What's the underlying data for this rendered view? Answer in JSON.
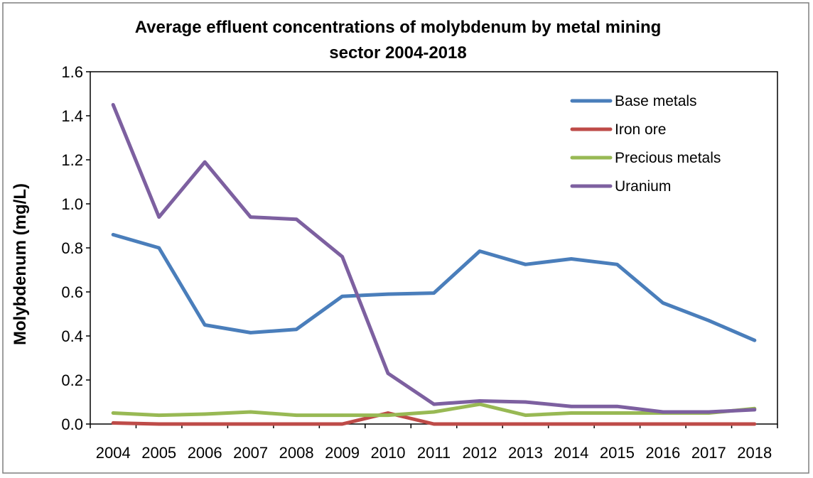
{
  "chart_data": {
    "type": "line",
    "title_line1": "Average effluent concentrations of molybdenum by metal mining",
    "title_line2": "sector 2004-2018",
    "ylabel": "Molybdenum (mg/L)",
    "xlabel": "",
    "ylim": [
      0,
      1.6
    ],
    "yticks": [
      "0.0",
      "0.2",
      "0.4",
      "0.6",
      "0.8",
      "1.0",
      "1.2",
      "1.4",
      "1.6"
    ],
    "categories": [
      "2004",
      "2005",
      "2006",
      "2007",
      "2008",
      "2009",
      "2010",
      "2011",
      "2012",
      "2013",
      "2014",
      "2015",
      "2016",
      "2017",
      "2018"
    ],
    "legend_position": "top-right",
    "grid": false,
    "series": [
      {
        "name": "Base metals",
        "color": "#4A7EBB",
        "values": [
          0.86,
          0.8,
          0.45,
          0.415,
          0.43,
          0.58,
          0.59,
          0.595,
          0.785,
          0.725,
          0.75,
          0.725,
          0.55,
          0.47,
          0.38
        ]
      },
      {
        "name": "Iron ore",
        "color": "#BE4B48",
        "values": [
          0.005,
          0.0,
          0.0,
          0.0,
          0.0,
          0.0,
          0.05,
          0.0,
          0.0,
          0.0,
          0.0,
          0.0,
          0.0,
          0.0,
          0.0
        ]
      },
      {
        "name": "Precious metals",
        "color": "#98B954",
        "values": [
          0.05,
          0.04,
          0.045,
          0.055,
          0.04,
          0.04,
          0.04,
          0.055,
          0.09,
          0.04,
          0.05,
          0.05,
          0.05,
          0.05,
          0.07
        ]
      },
      {
        "name": "Uranium",
        "color": "#7D60A0",
        "values": [
          1.45,
          0.94,
          1.19,
          0.94,
          0.93,
          0.76,
          0.23,
          0.09,
          0.105,
          0.1,
          0.08,
          0.08,
          0.055,
          0.055,
          0.065
        ]
      }
    ]
  }
}
